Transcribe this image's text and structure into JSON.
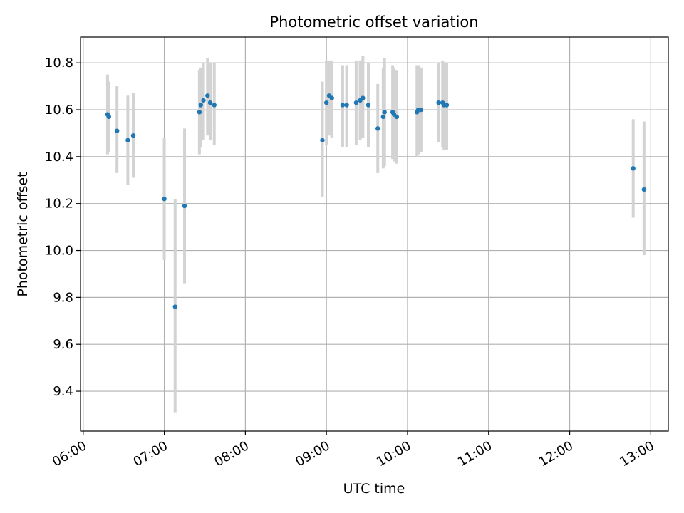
{
  "chart_data": {
    "type": "scatter",
    "title": "Photometric offset variation",
    "xlabel": "UTC time",
    "ylabel": "Photometric offset",
    "x_unit": "UTC time (HH:MM)",
    "xlim": [
      "05:58",
      "13:13"
    ],
    "ylim": [
      9.23,
      10.91
    ],
    "x_ticks": [
      "06:00",
      "07:00",
      "08:00",
      "09:00",
      "10:00",
      "11:00",
      "12:00",
      "13:00"
    ],
    "y_ticks": [
      "9.4",
      "9.6",
      "9.8",
      "10.0",
      "10.2",
      "10.4",
      "10.6",
      "10.8"
    ],
    "grid": true,
    "legend": "none",
    "colors": {
      "points": "#1f77b4",
      "error_bars": "#d3d3d3",
      "grid": "#b0b0b0",
      "axes": "#000000"
    },
    "series": [
      {
        "points": [
          {
            "x": "06:18",
            "y": 10.58,
            "ylo": 10.41,
            "yhi": 10.75
          },
          {
            "x": "06:19",
            "y": 10.57,
            "ylo": 10.42,
            "yhi": 10.72
          },
          {
            "x": "06:25",
            "y": 10.51,
            "ylo": 10.33,
            "yhi": 10.7
          },
          {
            "x": "06:33",
            "y": 10.47,
            "ylo": 10.28,
            "yhi": 10.66
          },
          {
            "x": "06:37",
            "y": 10.49,
            "ylo": 10.31,
            "yhi": 10.67
          },
          {
            "x": "07:00",
            "y": 10.22,
            "ylo": 9.96,
            "yhi": 10.48
          },
          {
            "x": "07:08",
            "y": 9.76,
            "ylo": 9.31,
            "yhi": 10.22
          },
          {
            "x": "07:15",
            "y": 10.19,
            "ylo": 9.86,
            "yhi": 10.52
          },
          {
            "x": "07:26",
            "y": 10.59,
            "ylo": 10.41,
            "yhi": 10.77
          },
          {
            "x": "07:27",
            "y": 10.62,
            "ylo": 10.44,
            "yhi": 10.78
          },
          {
            "x": "07:29",
            "y": 10.64,
            "ylo": 10.47,
            "yhi": 10.8
          },
          {
            "x": "07:32",
            "y": 10.66,
            "ylo": 10.49,
            "yhi": 10.82
          },
          {
            "x": "07:34",
            "y": 10.63,
            "ylo": 10.47,
            "yhi": 10.8
          },
          {
            "x": "07:37",
            "y": 10.62,
            "ylo": 10.45,
            "yhi": 10.8
          },
          {
            "x": "08:57",
            "y": 10.47,
            "ylo": 10.23,
            "yhi": 10.72
          },
          {
            "x": "09:00",
            "y": 10.63,
            "ylo": 10.45,
            "yhi": 10.81
          },
          {
            "x": "09:02",
            "y": 10.66,
            "ylo": 10.49,
            "yhi": 10.81
          },
          {
            "x": "09:04",
            "y": 10.65,
            "ylo": 10.48,
            "yhi": 10.81
          },
          {
            "x": "09:12",
            "y": 10.62,
            "ylo": 10.44,
            "yhi": 10.79
          },
          {
            "x": "09:15",
            "y": 10.62,
            "ylo": 10.44,
            "yhi": 10.79
          },
          {
            "x": "09:22",
            "y": 10.63,
            "ylo": 10.45,
            "yhi": 10.81
          },
          {
            "x": "09:25",
            "y": 10.64,
            "ylo": 10.47,
            "yhi": 10.81
          },
          {
            "x": "09:27",
            "y": 10.65,
            "ylo": 10.48,
            "yhi": 10.83
          },
          {
            "x": "09:31",
            "y": 10.62,
            "ylo": 10.44,
            "yhi": 10.8
          },
          {
            "x": "09:38",
            "y": 10.52,
            "ylo": 10.33,
            "yhi": 10.71
          },
          {
            "x": "09:42",
            "y": 10.57,
            "ylo": 10.35,
            "yhi": 10.78
          },
          {
            "x": "09:43",
            "y": 10.59,
            "ylo": 10.36,
            "yhi": 10.82
          },
          {
            "x": "09:49",
            "y": 10.59,
            "ylo": 10.39,
            "yhi": 10.79
          },
          {
            "x": "09:50",
            "y": 10.58,
            "ylo": 10.38,
            "yhi": 10.78
          },
          {
            "x": "09:52",
            "y": 10.57,
            "ylo": 10.37,
            "yhi": 10.77
          },
          {
            "x": "10:07",
            "y": 10.59,
            "ylo": 10.4,
            "yhi": 10.79
          },
          {
            "x": "10:08",
            "y": 10.6,
            "ylo": 10.41,
            "yhi": 10.79
          },
          {
            "x": "10:10",
            "y": 10.6,
            "ylo": 10.42,
            "yhi": 10.78
          },
          {
            "x": "10:23",
            "y": 10.63,
            "ylo": 10.46,
            "yhi": 10.8
          },
          {
            "x": "10:26",
            "y": 10.63,
            "ylo": 10.44,
            "yhi": 10.81
          },
          {
            "x": "10:27",
            "y": 10.62,
            "ylo": 10.43,
            "yhi": 10.8
          },
          {
            "x": "10:29",
            "y": 10.62,
            "ylo": 10.43,
            "yhi": 10.8
          },
          {
            "x": "12:47",
            "y": 10.35,
            "ylo": 10.14,
            "yhi": 10.56
          },
          {
            "x": "12:55",
            "y": 10.26,
            "ylo": 9.98,
            "yhi": 10.55
          }
        ]
      }
    ]
  }
}
